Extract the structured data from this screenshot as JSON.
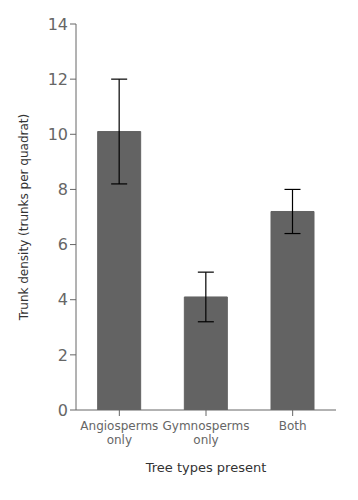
{
  "chart_data": {
    "type": "bar",
    "categories": [
      "Angiosperms\nonly",
      "Gymnosperms\nonly",
      "Both"
    ],
    "values": [
      10.1,
      4.1,
      7.2
    ],
    "errors": [
      1.9,
      0.9,
      0.8
    ],
    "color": "#636363",
    "xlabel": "Tree types present",
    "ylabel": "Trunk density (trunks per quadrat)",
    "ylim": [
      0,
      14
    ],
    "yticks": [
      0,
      2,
      4,
      6,
      8,
      10,
      12,
      14
    ],
    "grid": false
  }
}
